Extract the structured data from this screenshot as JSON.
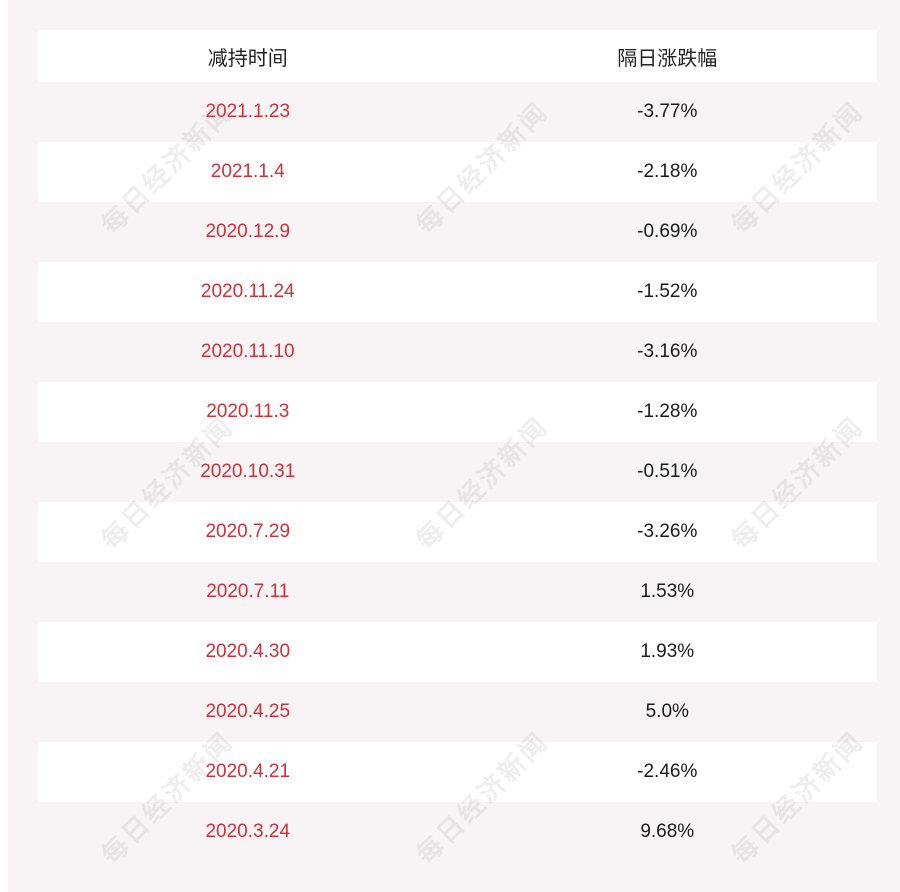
{
  "table": {
    "headers": [
      "减持时间",
      "隔日涨跌幅"
    ],
    "rows": [
      {
        "date": "2021.1.23",
        "change": "-3.77%"
      },
      {
        "date": "2021.1.4",
        "change": "-2.18%"
      },
      {
        "date": "2020.12.9",
        "change": "-0.69%"
      },
      {
        "date": "2020.11.24",
        "change": "-1.52%"
      },
      {
        "date": "2020.11.10",
        "change": "-3.16%"
      },
      {
        "date": "2020.11.3",
        "change": "-1.28%"
      },
      {
        "date": "2020.10.31",
        "change": "-0.51%"
      },
      {
        "date": "2020.7.29",
        "change": "-3.26%"
      },
      {
        "date": "2020.7.11",
        "change": "1.53%"
      },
      {
        "date": "2020.4.30",
        "change": "1.93%"
      },
      {
        "date": "2020.4.25",
        "change": "5.0%"
      },
      {
        "date": "2020.4.21",
        "change": "-2.46%"
      },
      {
        "date": "2020.3.24",
        "change": "9.68%"
      }
    ]
  },
  "watermark": {
    "text": "每日经济新闻"
  },
  "colors": {
    "date_text": "#d32f3a",
    "value_text": "#1a1a1a",
    "stripe": "#f8f4f5",
    "row": "#ffffff"
  }
}
